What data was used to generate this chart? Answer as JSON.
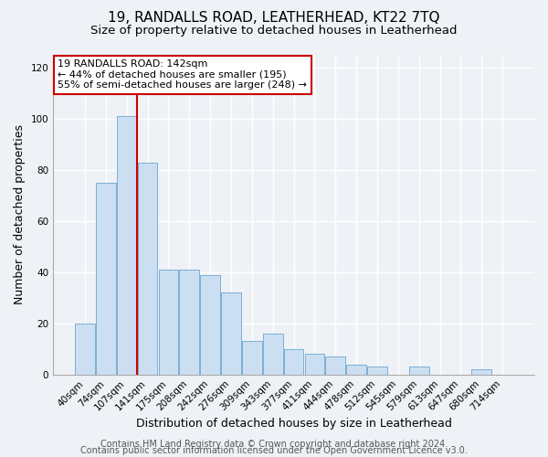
{
  "title": "19, RANDALLS ROAD, LEATHERHEAD, KT22 7TQ",
  "subtitle": "Size of property relative to detached houses in Leatherhead",
  "xlabel": "Distribution of detached houses by size in Leatherhead",
  "ylabel": "Number of detached properties",
  "bar_labels": [
    "40sqm",
    "74sqm",
    "107sqm",
    "141sqm",
    "175sqm",
    "208sqm",
    "242sqm",
    "276sqm",
    "309sqm",
    "343sqm",
    "377sqm",
    "411sqm",
    "444sqm",
    "478sqm",
    "512sqm",
    "545sqm",
    "579sqm",
    "613sqm",
    "647sqm",
    "680sqm",
    "714sqm"
  ],
  "bar_values": [
    20,
    75,
    101,
    83,
    41,
    41,
    39,
    32,
    13,
    16,
    10,
    8,
    7,
    4,
    3,
    0,
    3,
    0,
    0,
    2,
    0
  ],
  "bar_color": "#ccdff2",
  "bar_edge_color": "#7aafd4",
  "red_line_index": 2,
  "annotation_title": "19 RANDALLS ROAD: 142sqm",
  "annotation_line1": "← 44% of detached houses are smaller (195)",
  "annotation_line2": "55% of semi-detached houses are larger (248) →",
  "annotation_box_color": "#ffffff",
  "annotation_box_edge": "#cc0000",
  "red_line_color": "#cc0000",
  "ylim": [
    0,
    125
  ],
  "yticks": [
    0,
    20,
    40,
    60,
    80,
    100,
    120
  ],
  "footer1": "Contains HM Land Registry data © Crown copyright and database right 2024.",
  "footer2": "Contains public sector information licensed under the Open Government Licence v3.0.",
  "background_color": "#eef2f7",
  "grid_color": "#ffffff",
  "title_fontsize": 11,
  "subtitle_fontsize": 9.5,
  "axis_label_fontsize": 9,
  "tick_fontsize": 7.5,
  "footer_fontsize": 7
}
